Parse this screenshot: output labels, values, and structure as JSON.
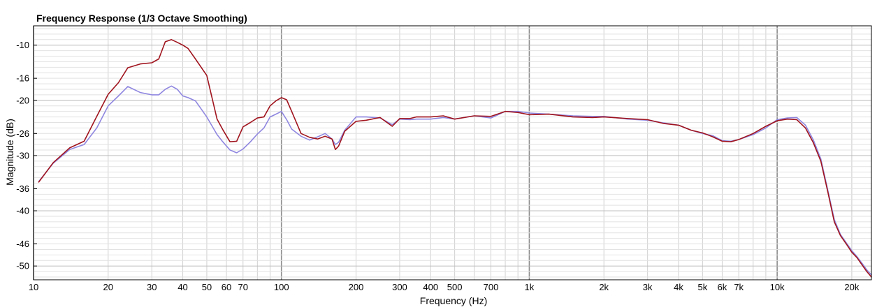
{
  "chart_data": {
    "type": "line",
    "title": "Frequency Response (1/3 Octave Smoothing)",
    "xlabel": "Frequency (Hz)",
    "ylabel": "Magnitude (dB)",
    "xscale": "log",
    "xlim": [
      10,
      24000
    ],
    "ylim": [
      -52.5,
      -6.5
    ],
    "grid": true,
    "x_ticks": [
      {
        "value": 10,
        "label": "10"
      },
      {
        "value": 20,
        "label": "20"
      },
      {
        "value": 30,
        "label": "30"
      },
      {
        "value": 40,
        "label": "40"
      },
      {
        "value": 50,
        "label": "50"
      },
      {
        "value": 60,
        "label": "60"
      },
      {
        "value": 70,
        "label": "70"
      },
      {
        "value": 100,
        "label": "100"
      },
      {
        "value": 200,
        "label": "200"
      },
      {
        "value": 300,
        "label": "300"
      },
      {
        "value": 400,
        "label": "400"
      },
      {
        "value": 500,
        "label": "500"
      },
      {
        "value": 700,
        "label": "700"
      },
      {
        "value": 1000,
        "label": "1k"
      },
      {
        "value": 2000,
        "label": "2k"
      },
      {
        "value": 3000,
        "label": "3k"
      },
      {
        "value": 4000,
        "label": "4k"
      },
      {
        "value": 5000,
        "label": "5k"
      },
      {
        "value": 6000,
        "label": "6k"
      },
      {
        "value": 7000,
        "label": "7k"
      },
      {
        "value": 10000,
        "label": "10k"
      },
      {
        "value": 20000,
        "label": "20k"
      }
    ],
    "y_ticks": [
      {
        "value": -10,
        "label": "-10"
      },
      {
        "value": -16,
        "label": "-16"
      },
      {
        "value": -20,
        "label": "-20"
      },
      {
        "value": -26,
        "label": "-26"
      },
      {
        "value": -30,
        "label": "-30"
      },
      {
        "value": -36,
        "label": "-36"
      },
      {
        "value": -40,
        "label": "-40"
      },
      {
        "value": -46,
        "label": "-46"
      },
      {
        "value": -50,
        "label": "-50"
      }
    ],
    "series": [
      {
        "color": "#a0141e",
        "x": [
          10.5,
          12,
          14,
          16,
          18,
          20,
          22,
          24,
          27,
          30,
          32,
          34,
          36,
          38,
          40,
          42,
          45,
          50,
          55,
          58,
          62,
          66,
          70,
          75,
          80,
          85,
          90,
          95,
          100,
          105,
          110,
          120,
          130,
          140,
          150,
          160,
          165,
          170,
          180,
          200,
          220,
          250,
          280,
          300,
          330,
          350,
          400,
          450,
          500,
          600,
          700,
          800,
          900,
          1000,
          1200,
          1500,
          1800,
          2000,
          2500,
          3000,
          3500,
          4000,
          4500,
          5000,
          5500,
          6000,
          6500,
          7000,
          8000,
          9000,
          10000,
          11000,
          12000,
          13000,
          14000,
          15000,
          16000,
          17000,
          18000,
          19000,
          20000,
          21000,
          22000,
          23000,
          24000
        ],
        "y": [
          -34.8,
          -31.3,
          -28.6,
          -27.4,
          -22.9,
          -18.9,
          -16.8,
          -14.1,
          -13.4,
          -13.2,
          -12.5,
          -9.4,
          -9.0,
          -9.5,
          -10.0,
          -10.6,
          -12.5,
          -15.5,
          -23.4,
          -25.3,
          -27.5,
          -27.4,
          -24.8,
          -24.0,
          -23.2,
          -23.0,
          -21.0,
          -20.1,
          -19.5,
          -19.9,
          -22.0,
          -26.0,
          -26.7,
          -27.0,
          -26.5,
          -27.0,
          -28.9,
          -28.3,
          -25.6,
          -23.8,
          -23.6,
          -23.1,
          -24.7,
          -23.3,
          -23.3,
          -23.0,
          -23.0,
          -22.8,
          -23.4,
          -22.8,
          -22.9,
          -22.0,
          -22.2,
          -22.6,
          -22.5,
          -23.0,
          -23.1,
          -23.0,
          -23.3,
          -23.5,
          -24.2,
          -24.5,
          -25.4,
          -25.9,
          -26.6,
          -27.4,
          -27.5,
          -27.1,
          -26.0,
          -24.7,
          -23.7,
          -23.4,
          -23.5,
          -25.0,
          -27.7,
          -31.0,
          -36.5,
          -42.0,
          -44.5,
          -46.0,
          -47.5,
          -48.5,
          -49.8,
          -51.0,
          -52.0
        ]
      },
      {
        "color": "#8f87e0",
        "x": [
          10.5,
          12,
          14,
          16,
          18,
          20,
          22,
          24,
          27,
          30,
          32,
          34,
          36,
          38,
          40,
          42,
          45,
          50,
          55,
          58,
          62,
          66,
          70,
          75,
          80,
          85,
          90,
          95,
          100,
          105,
          110,
          120,
          130,
          140,
          150,
          160,
          165,
          170,
          180,
          200,
          220,
          250,
          280,
          300,
          330,
          350,
          400,
          450,
          500,
          600,
          700,
          800,
          900,
          1000,
          1200,
          1500,
          1800,
          2000,
          2500,
          3000,
          3500,
          4000,
          4500,
          5000,
          5500,
          6000,
          6500,
          7000,
          8000,
          9000,
          10000,
          11000,
          12000,
          13000,
          14000,
          15000,
          16000,
          17000,
          18000,
          19000,
          20000,
          21000,
          22000,
          23000,
          24000
        ],
        "y": [
          -34.7,
          -31.4,
          -28.9,
          -28.0,
          -25.0,
          -21.0,
          -19.2,
          -17.5,
          -18.6,
          -19.0,
          -19.0,
          -18.0,
          -17.4,
          -18.0,
          -19.2,
          -19.5,
          -20.1,
          -23.0,
          -26.2,
          -27.5,
          -29.0,
          -29.5,
          -28.8,
          -27.5,
          -26.1,
          -25.0,
          -23.0,
          -22.5,
          -22.0,
          -23.5,
          -25.2,
          -26.5,
          -27.2,
          -26.6,
          -26.0,
          -27.0,
          -28.0,
          -27.6,
          -25.4,
          -23.0,
          -23.0,
          -23.2,
          -24.4,
          -23.4,
          -23.5,
          -23.4,
          -23.4,
          -23.1,
          -23.4,
          -22.8,
          -23.2,
          -22.0,
          -22.0,
          -22.3,
          -22.5,
          -22.8,
          -22.9,
          -22.9,
          -23.4,
          -23.6,
          -24.1,
          -24.5,
          -25.4,
          -26.0,
          -26.4,
          -27.3,
          -27.4,
          -27.1,
          -26.2,
          -25.0,
          -23.5,
          -23.2,
          -23.1,
          -24.5,
          -27.2,
          -30.6,
          -36.2,
          -41.6,
          -44.3,
          -45.8,
          -47.2,
          -48.3,
          -49.5,
          -50.7,
          -51.6
        ]
      }
    ]
  }
}
